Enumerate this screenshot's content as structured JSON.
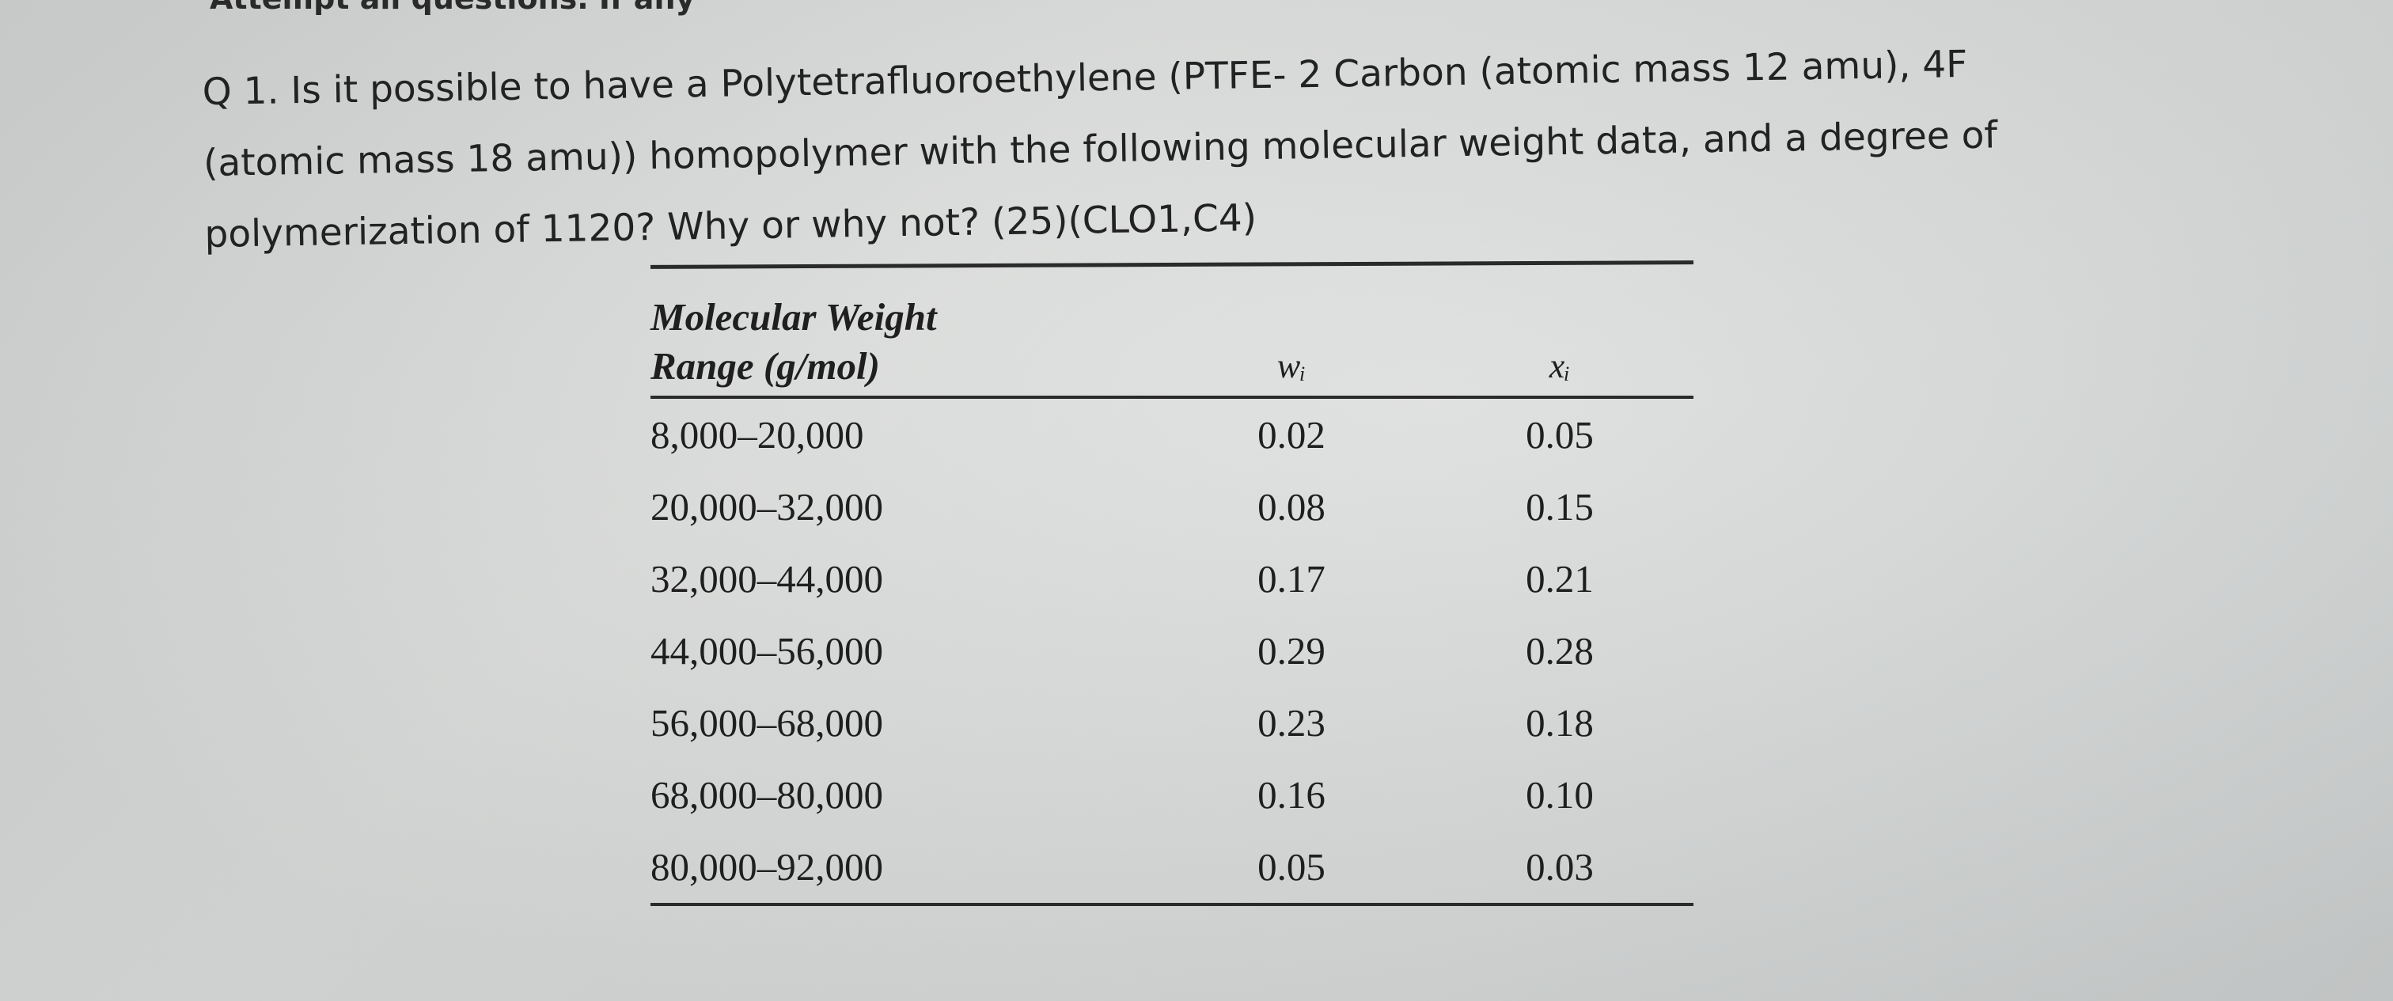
{
  "header": {
    "cut_text": "Attempt all questions. If any"
  },
  "question": {
    "line1": "Q 1. Is it possible to have a Polytetrafluoroethylene (PTFE- 2 Carbon (atomic mass 12 amu), 4F",
    "line2": "(atomic mass 18 amu)) homopolymer with the following molecular weight data, and a degree of",
    "line3": "polymerization of 1120? Why or why not?   (25)(CLO1,C4)"
  },
  "table": {
    "headers": {
      "range_line1": "Molecular Weight",
      "range_line2": "Range (g/mol)",
      "wi": "wᵢ",
      "xi": "xᵢ"
    },
    "rows": [
      {
        "range": "8,000–20,000",
        "wi": "0.02",
        "xi": "0.05"
      },
      {
        "range": "20,000–32,000",
        "wi": "0.08",
        "xi": "0.15"
      },
      {
        "range": "32,000–44,000",
        "wi": "0.17",
        "xi": "0.21"
      },
      {
        "range": "44,000–56,000",
        "wi": "0.29",
        "xi": "0.28"
      },
      {
        "range": "56,000–68,000",
        "wi": "0.23",
        "xi": "0.18"
      },
      {
        "range": "68,000–80,000",
        "wi": "0.16",
        "xi": "0.10"
      },
      {
        "range": "80,000–92,000",
        "wi": "0.05",
        "xi": "0.03"
      }
    ]
  }
}
